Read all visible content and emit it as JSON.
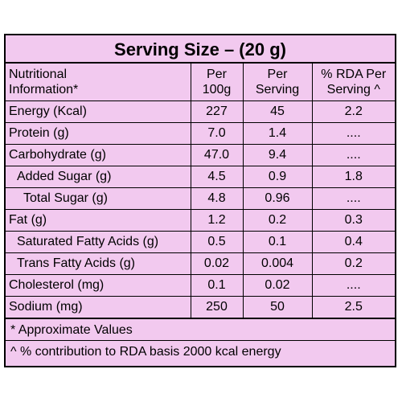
{
  "title": "Serving Size – (20 g)",
  "headers": {
    "col1_line1": "Nutritional",
    "col1_line2": "Information*",
    "col2_line1": "Per",
    "col2_line2": "100g",
    "col3_line1": "Per",
    "col3_line2": "Serving",
    "col4_line1": "% RDA Per",
    "col4_line2": "Serving ^"
  },
  "rows": [
    {
      "name": "Energy (Kcal)",
      "per100": "227",
      "serving": "45",
      "rda": "2.2"
    },
    {
      "name": "Protein (g)",
      "per100": "7.0",
      "serving": "1.4",
      "rda": "...."
    },
    {
      "name": "Carbohydrate (g)",
      "per100": "47.0",
      "serving": "9.4",
      "rda": "...."
    },
    {
      "name": "Added Sugar (g)",
      "per100": "4.5",
      "serving": "0.9",
      "rda": "1.8"
    },
    {
      "name": "Total Sugar (g)",
      "per100": "4.8",
      "serving": "0.96",
      "rda": "...."
    },
    {
      "name": "Fat (g)",
      "per100": "1.2",
      "serving": "0.2",
      "rda": "0.3"
    },
    {
      "name": "Saturated Fatty Acids (g)",
      "per100": "0.5",
      "serving": "0.1",
      "rda": "0.4"
    },
    {
      "name": "Trans Fatty Acids (g)",
      "per100": "0.02",
      "serving": "0.004",
      "rda": "0.2"
    },
    {
      "name": "Cholesterol (mg)",
      "per100": "0.1",
      "serving": "0.02",
      "rda": "...."
    },
    {
      "name": "Sodium (mg)",
      "per100": "250",
      "serving": "50",
      "rda": "2.5"
    }
  ],
  "footnotes": [
    "* Approximate Values",
    "^ % contribution to RDA basis 2000 kcal energy"
  ],
  "colors": {
    "background": "#f2c9ef",
    "border": "#000000"
  }
}
